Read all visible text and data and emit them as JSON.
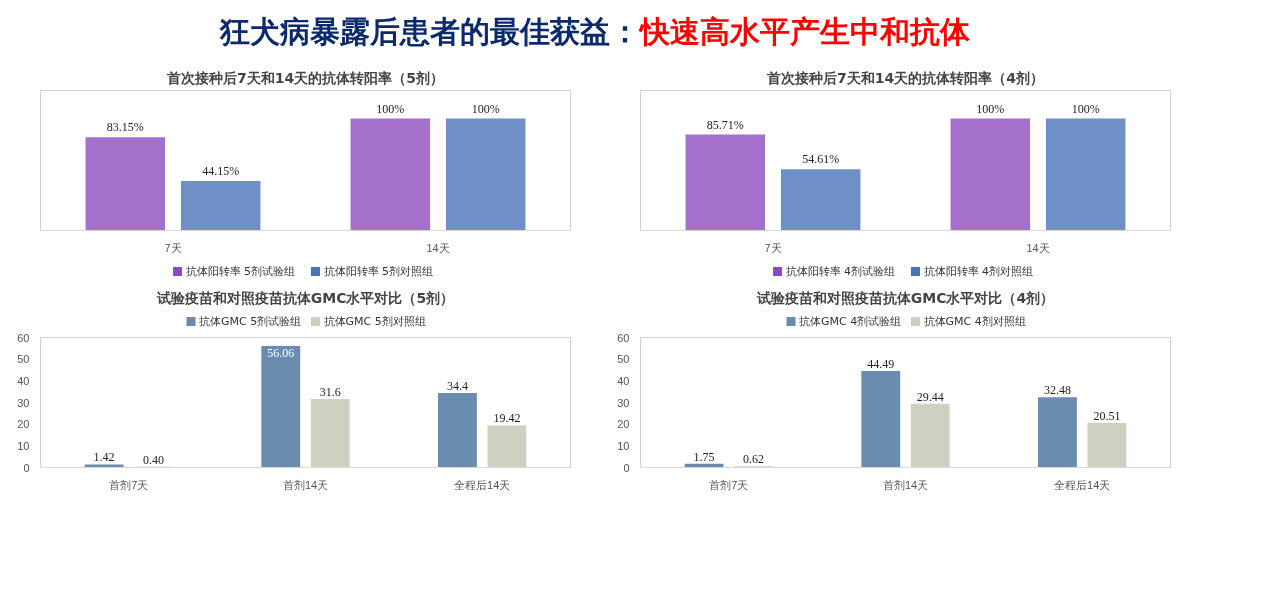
{
  "chart_data": [
    {
      "type": "bar",
      "title": "首次接种后7天和14天的抗体转阳率（5剂）",
      "annotations": [
        "狂犬病暴露后患者的最佳获益：",
        "快速高水平产生中和抗体"
      ],
      "categories": [
        "7天",
        "14天"
      ],
      "tick_labels": "x",
      "legend": "bottom",
      "grid": false,
      "series": [
        {
          "name": "抗体阳转率 5剂试验组",
          "color": "#8e4bbf",
          "values": [
            83.15,
            100
          ],
          "value_labels": [
            "83.15%",
            "100%"
          ]
        },
        {
          "name": "抗体阳转率 5剂对照组",
          "color": "#4a74b8",
          "values": [
            44.15,
            100
          ],
          "value_labels": [
            "44.15%",
            "100%"
          ]
        }
      ]
    },
    {
      "type": "bar",
      "title": "首次接种后7天和14天的抗体转阳率（4剂）",
      "categories": [
        "7天",
        "14天"
      ],
      "tick_labels": "x",
      "legend": "bottom",
      "grid": false,
      "series": [
        {
          "name": "抗体阳转率 4剂试验组",
          "color": "#8e4bbf",
          "values": [
            85.71,
            100
          ],
          "value_labels": [
            "85.71%",
            "100%"
          ]
        },
        {
          "name": "抗体阳转率 4剂对照组",
          "color": "#4a74b8",
          "values": [
            54.61,
            100
          ],
          "value_labels": [
            "54.61%",
            "100%"
          ]
        }
      ]
    },
    {
      "type": "bar",
      "title": "试验疫苗和对照疫苗抗体GMC水平对比（5剂）",
      "categories": [
        "首剂7天",
        "首剂14天",
        "全程后14天"
      ],
      "ylim": [
        0,
        60
      ],
      "yticks": [
        0,
        10,
        20,
        30,
        40,
        50,
        60
      ],
      "legend": "top",
      "grid": false,
      "series": [
        {
          "name": "抗体GMC 5剂试验组",
          "color": "#6a8caf",
          "values": [
            1.42,
            56.06,
            34.4
          ],
          "value_labels": [
            "1.42",
            "56.06",
            "34.4"
          ]
        },
        {
          "name": "抗体GMC 5剂对照组",
          "color": "#cfcfc2",
          "values": [
            0.4,
            31.6,
            19.42
          ],
          "value_labels": [
            "0.40",
            "31.6",
            "19.42"
          ]
        }
      ]
    },
    {
      "type": "bar",
      "title": "试验疫苗和对照疫苗抗体GMC水平对比（4剂）",
      "categories": [
        "首剂7天",
        "首剂14天",
        "全程后14天"
      ],
      "ylim": [
        0,
        60
      ],
      "yticks": [
        0,
        10,
        20,
        30,
        40,
        50,
        60
      ],
      "legend": "top",
      "grid": false,
      "series": [
        {
          "name": "抗体GMC 4剂试验组",
          "color": "#6a8caf",
          "values": [
            1.75,
            44.49,
            32.48
          ],
          "value_labels": [
            "1.75",
            "44.49",
            "32.48"
          ]
        },
        {
          "name": "抗体GMC 4剂对照组",
          "color": "#cfcfc2",
          "values": [
            0.62,
            29.44,
            20.51
          ],
          "value_labels": [
            "0.62",
            "29.44",
            "20.51"
          ]
        }
      ]
    }
  ]
}
